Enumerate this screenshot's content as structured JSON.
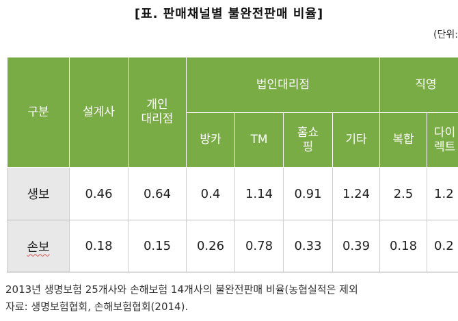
{
  "title": "[표. 판매채널별 불완전판매 비율]",
  "unit": "(단위:",
  "table": {
    "col_gubun": "구분",
    "col_sealgyesa": "설계사",
    "col_gaein": "개인\n대리점",
    "col_group_beobin": "법인대리점",
    "col_group_jikyoung": "직영",
    "sub_bangka": "방카",
    "sub_tm": "TM",
    "sub_homeshopping": "홈쇼\n핑",
    "sub_gita": "기타",
    "sub_bokhap": "복합",
    "sub_direct": "다이\n렉트",
    "rows": [
      {
        "label": "생보",
        "values": [
          "0.46",
          "0.64",
          "0.4",
          "1.14",
          "0.91",
          "1.24",
          "2.5",
          "1.2"
        ]
      },
      {
        "label": "손보",
        "values": [
          "0.18",
          "0.15",
          "0.26",
          "0.78",
          "0.33",
          "0.39",
          "0.18",
          "0.2"
        ]
      }
    ]
  },
  "notes": {
    "line1": "2013년 생명보험 25개사와 손해보험 14개사의 불완전판매 비율(농협실적은 제외",
    "line2": "자료: 생명보험협회, 손해보험협회(2014)."
  }
}
